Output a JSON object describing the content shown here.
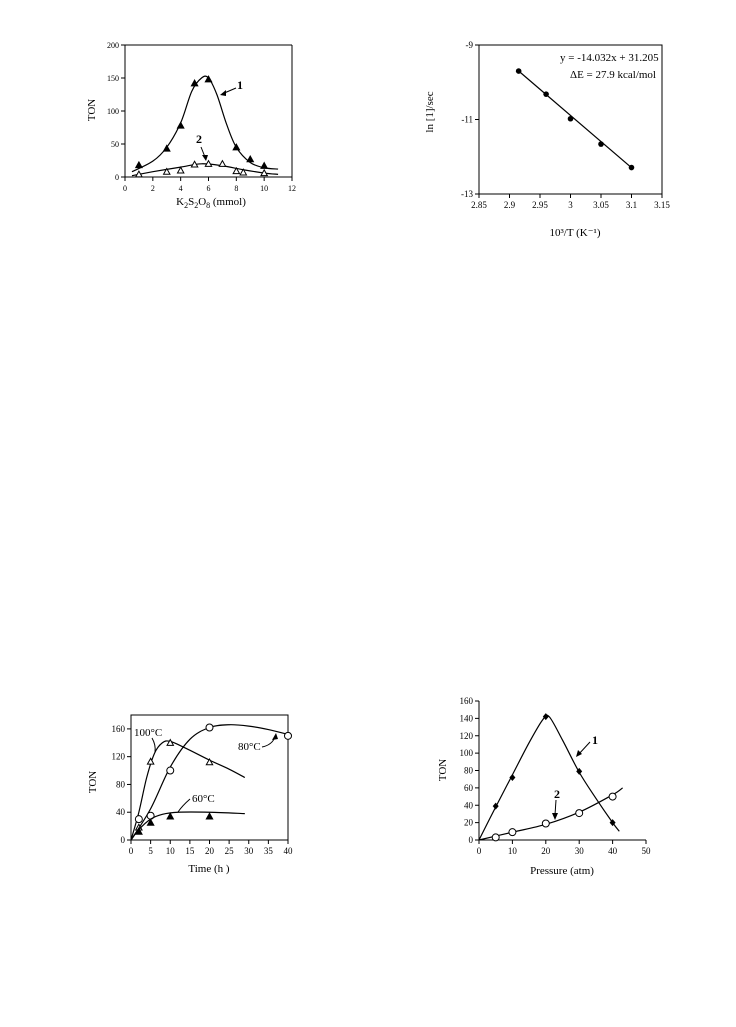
{
  "chart_data": [
    {
      "type": "scatter",
      "xlabel": "K2S2O8 (mmol)",
      "ylabel": "TON",
      "xlim": [
        0,
        12
      ],
      "ylim": [
        0,
        200
      ],
      "x_ticks": [
        "0",
        "2",
        "4",
        "6",
        "8",
        "10",
        "12"
      ],
      "y_ticks": [
        "0",
        "50",
        "100",
        "150",
        "200"
      ],
      "series": [
        {
          "name": "1",
          "marker": "filled-triangle",
          "x": [
            1,
            3,
            4,
            5,
            6,
            8,
            9,
            10
          ],
          "y": [
            18,
            43,
            78,
            142,
            148,
            45,
            27,
            17
          ],
          "curve_x": [
            0.5,
            2,
            3,
            4,
            4.8,
            5.5,
            6,
            6.6,
            7.3,
            8,
            9,
            10,
            11
          ],
          "curve_y": [
            8,
            24,
            45,
            82,
            130,
            150,
            150,
            125,
            80,
            45,
            22,
            14,
            12
          ]
        },
        {
          "name": "2",
          "marker": "open-triangle",
          "x": [
            1,
            3,
            4,
            5,
            6,
            7,
            8,
            8.5,
            10
          ],
          "y": [
            4,
            8,
            10,
            19,
            20,
            20,
            9,
            7,
            6
          ],
          "curve_x": [
            0.5,
            2,
            4,
            5.5,
            7,
            8.5,
            10,
            11
          ],
          "curve_y": [
            2,
            8,
            15,
            20,
            17,
            11,
            6,
            4
          ]
        }
      ],
      "annotations": [
        "1",
        "2"
      ]
    },
    {
      "type": "scatter",
      "xlabel": "10³/T (K⁻¹)",
      "ylabel": "ln [1]/sec",
      "xlim": [
        2.85,
        3.15
      ],
      "ylim": [
        -13,
        -9
      ],
      "x_ticks": [
        "2.85",
        "2.9",
        "2.95",
        "3",
        "3.05",
        "3.1",
        "3.15"
      ],
      "y_ticks": [
        "-9",
        "-11",
        "-13"
      ],
      "series": [
        {
          "marker": "filled-circle",
          "x": [
            2.915,
            2.96,
            3.0,
            3.05,
            3.1
          ],
          "y": [
            -9.7,
            -10.32,
            -10.98,
            -11.66,
            -12.29
          ]
        }
      ],
      "fit": {
        "slope": -14.032,
        "intercept": 31.205,
        "x_from": 2.915,
        "x_to": 3.1
      },
      "annotations": [
        "y = -14.032x + 31.205",
        "ΔE = 27.9 kcal/mol"
      ]
    },
    {
      "type": "scatter",
      "xlabel": "Time (h )",
      "ylabel": "TON",
      "xlim": [
        0,
        40
      ],
      "ylim": [
        0,
        180
      ],
      "x_ticks": [
        "0",
        "5",
        "10",
        "15",
        "20",
        "25",
        "30",
        "35",
        "40"
      ],
      "y_ticks": [
        "0",
        "40",
        "80",
        "120",
        "160"
      ],
      "series": [
        {
          "name": "100°C",
          "marker": "open-triangle",
          "x": [
            2,
            5,
            10,
            20
          ],
          "y": [
            18,
            113,
            140,
            112
          ],
          "curve_x": [
            0,
            2,
            4,
            6,
            8,
            10,
            14,
            20,
            25,
            29
          ],
          "curve_y": [
            0,
            40,
            90,
            125,
            140,
            142,
            132,
            115,
            102,
            90
          ]
        },
        {
          "name": "80°C",
          "marker": "open-circle",
          "x": [
            2,
            5,
            10,
            20,
            40
          ],
          "y": [
            30,
            35,
            100,
            162,
            150
          ],
          "curve_x": [
            0,
            5,
            10,
            15,
            20,
            25,
            30,
            35,
            40
          ],
          "curve_y": [
            0,
            45,
            105,
            145,
            162,
            166,
            164,
            159,
            152
          ]
        },
        {
          "name": "60°C",
          "marker": "filled-triangle",
          "x": [
            2,
            5,
            10,
            20
          ],
          "y": [
            12,
            25,
            34,
            34
          ],
          "curve_x": [
            0,
            2,
            5,
            8,
            12,
            20,
            29
          ],
          "curve_y": [
            0,
            15,
            30,
            37,
            40,
            40,
            38
          ]
        }
      ],
      "annotations": [
        "100°C",
        "80°C",
        "60°C"
      ]
    },
    {
      "type": "line",
      "xlabel": "Pressure (atm)",
      "ylabel": "TON",
      "xlim": [
        0,
        50
      ],
      "ylim": [
        0,
        160
      ],
      "x_ticks": [
        "0",
        "10",
        "20",
        "30",
        "40",
        "50"
      ],
      "y_ticks": [
        "0",
        "20",
        "40",
        "60",
        "80",
        "100",
        "120",
        "140",
        "160"
      ],
      "series": [
        {
          "name": "1",
          "marker": "filled-diamond",
          "x": [
            5,
            10,
            20,
            30,
            40
          ],
          "y": [
            39,
            72,
            142,
            79,
            20
          ],
          "curve_x": [
            0,
            5,
            10,
            15,
            19,
            21,
            25,
            30,
            35,
            40,
            42
          ],
          "curve_y": [
            0,
            38,
            75,
            112,
            138,
            142,
            115,
            78,
            48,
            20,
            10
          ]
        },
        {
          "name": "2",
          "marker": "open-circle",
          "x": [
            5,
            10,
            20,
            30,
            40
          ],
          "y": [
            3,
            9,
            19,
            31,
            50
          ],
          "curve_x": [
            0,
            10,
            20,
            30,
            40,
            43
          ],
          "curve_y": [
            0,
            9,
            18,
            32,
            52,
            60
          ]
        }
      ],
      "annotations": [
        "1",
        "2"
      ]
    }
  ]
}
